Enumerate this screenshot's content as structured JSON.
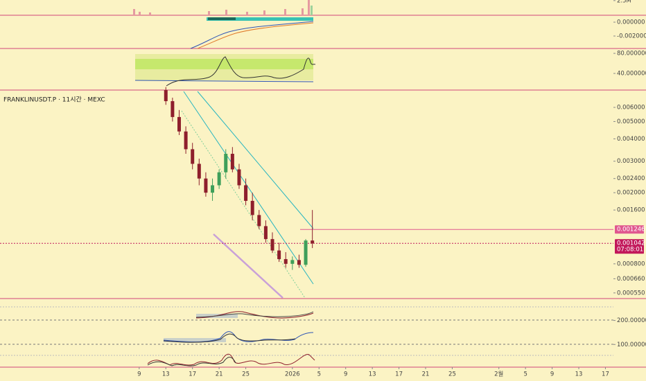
{
  "chart_data": {
    "type": "candlestick",
    "title": "FRANKLINUSDT.P · 11시간 · MEXC",
    "log_scale": true,
    "x": [
      4,
      5,
      6,
      7,
      8,
      9,
      10,
      11,
      12,
      13,
      14,
      15,
      16,
      17,
      18,
      19,
      20,
      21,
      22,
      23,
      24,
      25,
      26
    ],
    "open": [
      0.0075,
      0.0065,
      0.0053,
      0.0044,
      0.0035,
      0.0029,
      0.0024,
      0.002,
      0.0022,
      0.0026,
      0.0033,
      0.0027,
      0.0022,
      0.0018,
      0.0015,
      0.0013,
      0.0011,
      0.00095,
      0.00085,
      0.0008,
      0.00084,
      0.00079,
      0.00108
    ],
    "high": [
      0.0078,
      0.0068,
      0.0058,
      0.0047,
      0.0038,
      0.0031,
      0.0026,
      0.0024,
      0.0027,
      0.0035,
      0.0036,
      0.0029,
      0.0024,
      0.002,
      0.0016,
      0.0014,
      0.0012,
      0.00105,
      0.00093,
      0.00088,
      0.0009,
      0.0011,
      0.0016
    ],
    "low": [
      0.0062,
      0.005,
      0.0042,
      0.0033,
      0.0027,
      0.0022,
      0.0019,
      0.0018,
      0.0021,
      0.0024,
      0.0026,
      0.0021,
      0.0017,
      0.0014,
      0.00125,
      0.00105,
      0.00092,
      0.00082,
      0.00076,
      0.00074,
      0.00076,
      0.00077,
      0.00098
    ],
    "close": [
      0.0065,
      0.0053,
      0.0044,
      0.0035,
      0.0029,
      0.0024,
      0.002,
      0.0022,
      0.0026,
      0.0033,
      0.0027,
      0.0022,
      0.0018,
      0.0015,
      0.0013,
      0.0011,
      0.00095,
      0.00085,
      0.0008,
      0.00084,
      0.00079,
      0.00108,
      0.00104
    ],
    "up_color": "#3f9f5a",
    "down_color": "#8e1f2c",
    "xlim": [
      -20.9,
      71.2
    ],
    "xticks": [
      {
        "value": 0,
        "label": "9"
      },
      {
        "value": 4,
        "label": "13"
      },
      {
        "value": 8,
        "label": "17"
      },
      {
        "value": 12,
        "label": "21"
      },
      {
        "value": 16,
        "label": "25"
      },
      {
        "value": 23,
        "label": "2026"
      },
      {
        "value": 27,
        "label": "5"
      },
      {
        "value": 31,
        "label": "9"
      },
      {
        "value": 35,
        "label": "13"
      },
      {
        "value": 39,
        "label": "17"
      },
      {
        "value": 43,
        "label": "21"
      },
      {
        "value": 47,
        "label": "25"
      },
      {
        "value": 54,
        "label": "2월"
      },
      {
        "value": 58,
        "label": "5"
      },
      {
        "value": 62,
        "label": "9"
      },
      {
        "value": 66,
        "label": "13"
      },
      {
        "value": 70,
        "label": "17"
      }
    ],
    "ylim": [
      0.000516,
      0.0075
    ],
    "yticks": [
      {
        "value": 0.006,
        "label": "0.006000"
      },
      {
        "value": 0.005,
        "label": "0.005000"
      },
      {
        "value": 0.004,
        "label": "0.004000"
      },
      {
        "value": 0.003,
        "label": "0.003000"
      },
      {
        "value": 0.0024,
        "label": "0.002400"
      },
      {
        "value": 0.002,
        "label": "0.002000"
      },
      {
        "value": 0.0016,
        "label": "0.001600"
      },
      {
        "value": 0.0008,
        "label": "0.000800"
      },
      {
        "value": 0.00066,
        "label": "0.000660"
      },
      {
        "value": 0.00055,
        "label": "0.000550"
      }
    ],
    "price_lines": [
      {
        "value": 0.001246,
        "label": "0.001246",
        "color": "#e0578f"
      },
      {
        "value": 0.001042,
        "label": "0.001042",
        "color": "#c2185b",
        "countdown": "07:08:01"
      }
    ],
    "panels": [
      {
        "name": "volume",
        "ylim": [
          0,
          2600000
        ],
        "yticks": [
          {
            "value": 2500000,
            "label": "2.5M"
          }
        ]
      },
      {
        "name": "macd",
        "ylim": [
          -0.0038,
          0.001
        ],
        "yticks": [
          {
            "value": 0,
            "label": "0.000000"
          },
          {
            "value": -0.002,
            "label": "-0.002000"
          }
        ]
      },
      {
        "name": "rsi",
        "ylim": [
          6.9,
          89.7
        ],
        "yticks": [
          {
            "value": 80,
            "label": "80.000000"
          },
          {
            "value": 40,
            "label": "40.000000"
          }
        ]
      },
      {
        "name": "lower",
        "ylim": [
          5.7,
          291
        ],
        "yticks": [
          {
            "value": 200,
            "label": "200.000000"
          },
          {
            "value": 100,
            "label": "100.000000"
          }
        ]
      }
    ]
  }
}
